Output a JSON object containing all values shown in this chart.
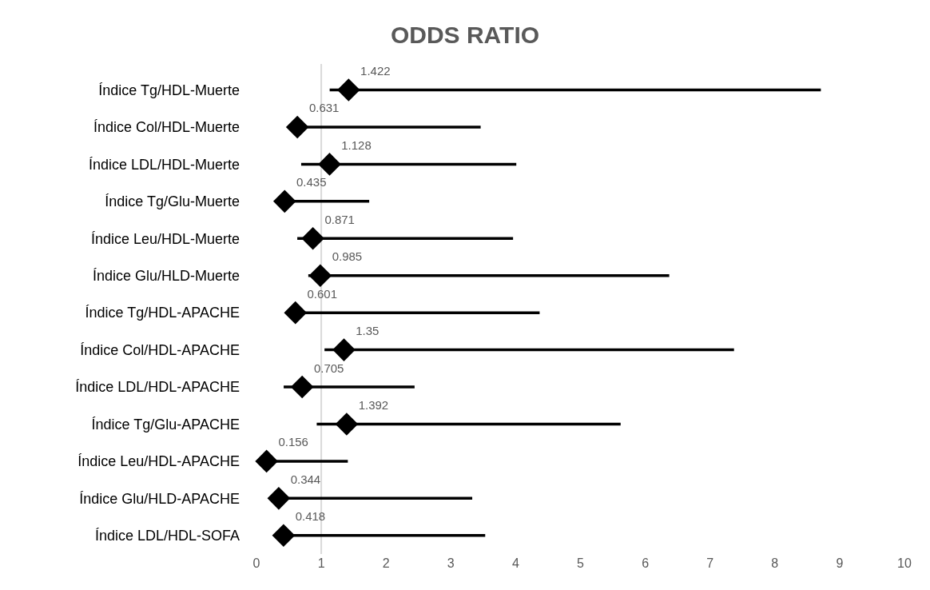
{
  "chart_data": {
    "type": "scatter",
    "orientation": "horizontal",
    "title": "ODDS RATIO",
    "categories": [
      "Índice Tg/HDL-Muerte",
      "Índice Col/HDL-Muerte",
      "Índice LDL/HDL-Muerte",
      "Índice Tg/Glu-Muerte",
      "Índice Leu/HDL-Muerte",
      "Índice Glu/HLD-Muerte",
      "Índice Tg/HDL-APACHE",
      "Índice Col/HDL-APACHE",
      "Índice LDL/HDL-APACHE",
      "Índice Tg/Glu-APACHE",
      "Índice Leu/HDL-APACHE",
      "Índice Glu/HLD-APACHE",
      "Índice LDL/HDL-SOFA"
    ],
    "values": [
      1.422,
      0.631,
      1.128,
      0.435,
      0.871,
      0.985,
      0.601,
      1.35,
      0.705,
      1.392,
      0.156,
      0.344,
      0.418
    ],
    "errors": [
      [
        1.13,
        8.71
      ],
      [
        0.631,
        3.46
      ],
      [
        0.69,
        4.01
      ],
      [
        0.435,
        1.74
      ],
      [
        0.63,
        3.96
      ],
      [
        0.8,
        6.37
      ],
      [
        0.601,
        4.37
      ],
      [
        1.05,
        7.37
      ],
      [
        0.42,
        2.44
      ],
      [
        0.93,
        5.62
      ],
      [
        0.156,
        1.41
      ],
      [
        0.344,
        3.33
      ],
      [
        0.418,
        3.53
      ]
    ],
    "color": "#000000",
    "marker": "diamond",
    "data_labels": true,
    "xlim": [
      0,
      10
    ],
    "xticks": [
      0,
      1,
      2,
      3,
      4,
      5,
      6,
      7,
      8,
      9,
      10
    ],
    "grid": false,
    "legend": false,
    "ref_lines": [
      {
        "axis": "x",
        "value": 1,
        "color": "#d9d9d9"
      }
    ]
  }
}
